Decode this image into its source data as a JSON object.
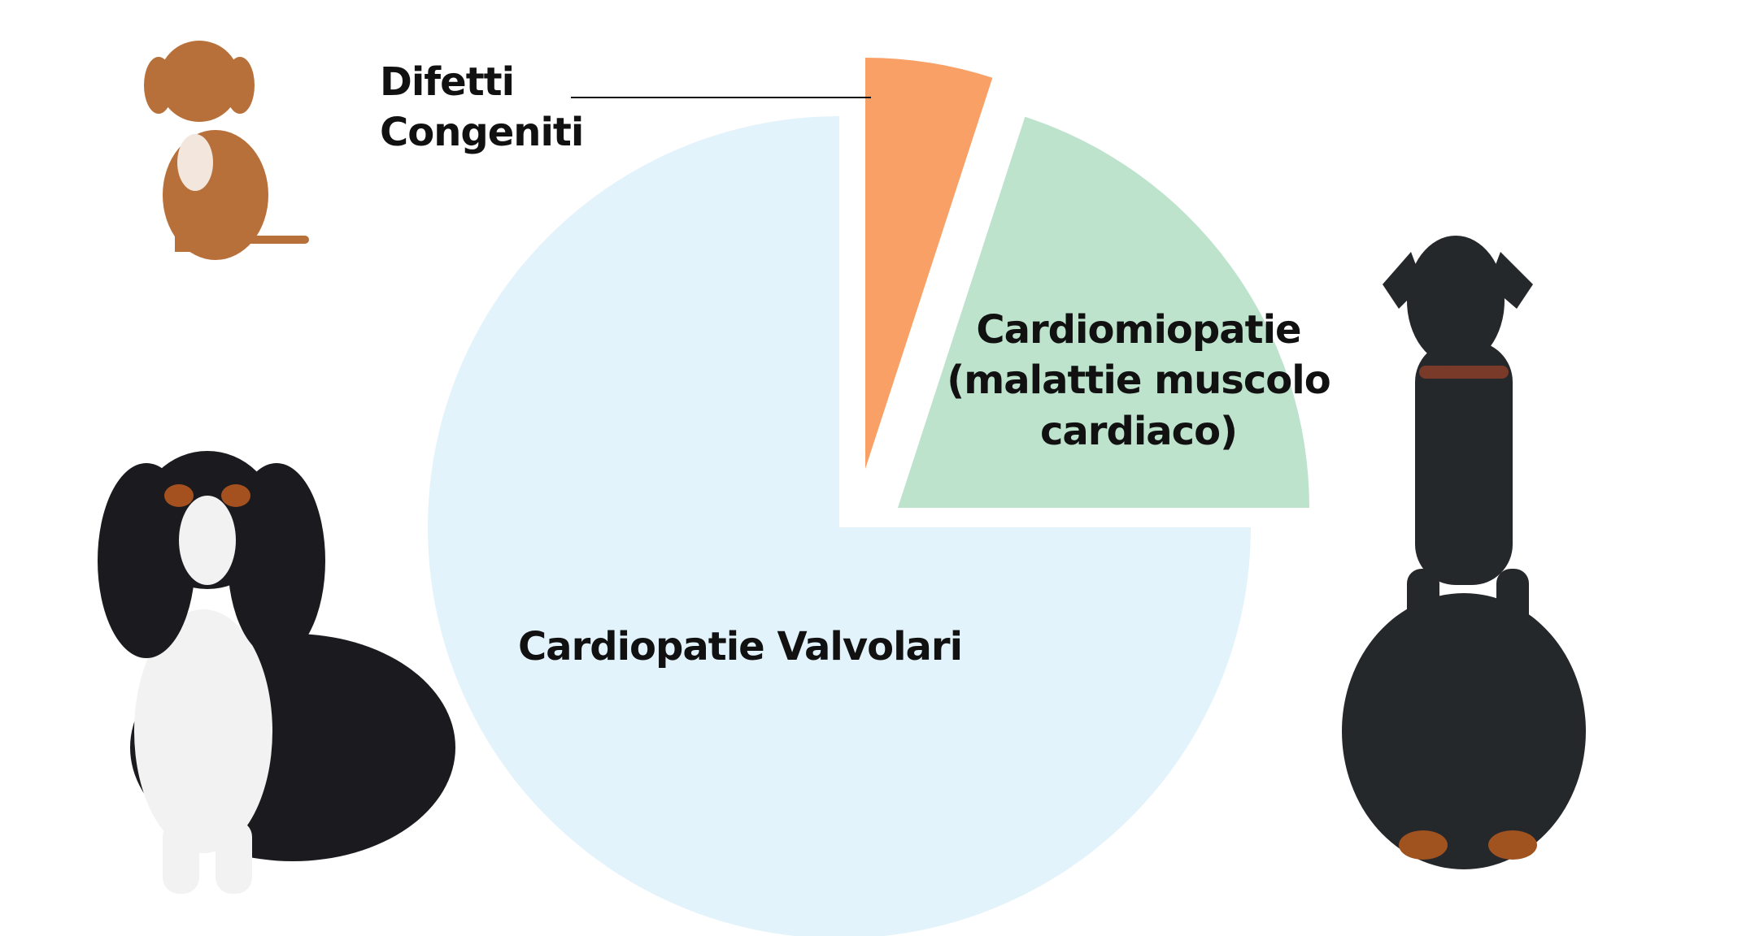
{
  "chart_data": {
    "type": "pie",
    "categories": [
      "Difetti Congeniti",
      "Cardiomiopatie (malattie muscolo cardiaco)",
      "Cardiopatie Valvolari"
    ],
    "values": [
      5,
      20,
      75
    ],
    "colors": [
      "#f9a066",
      "#bde3cc",
      "#e3f3fb"
    ]
  }
}
